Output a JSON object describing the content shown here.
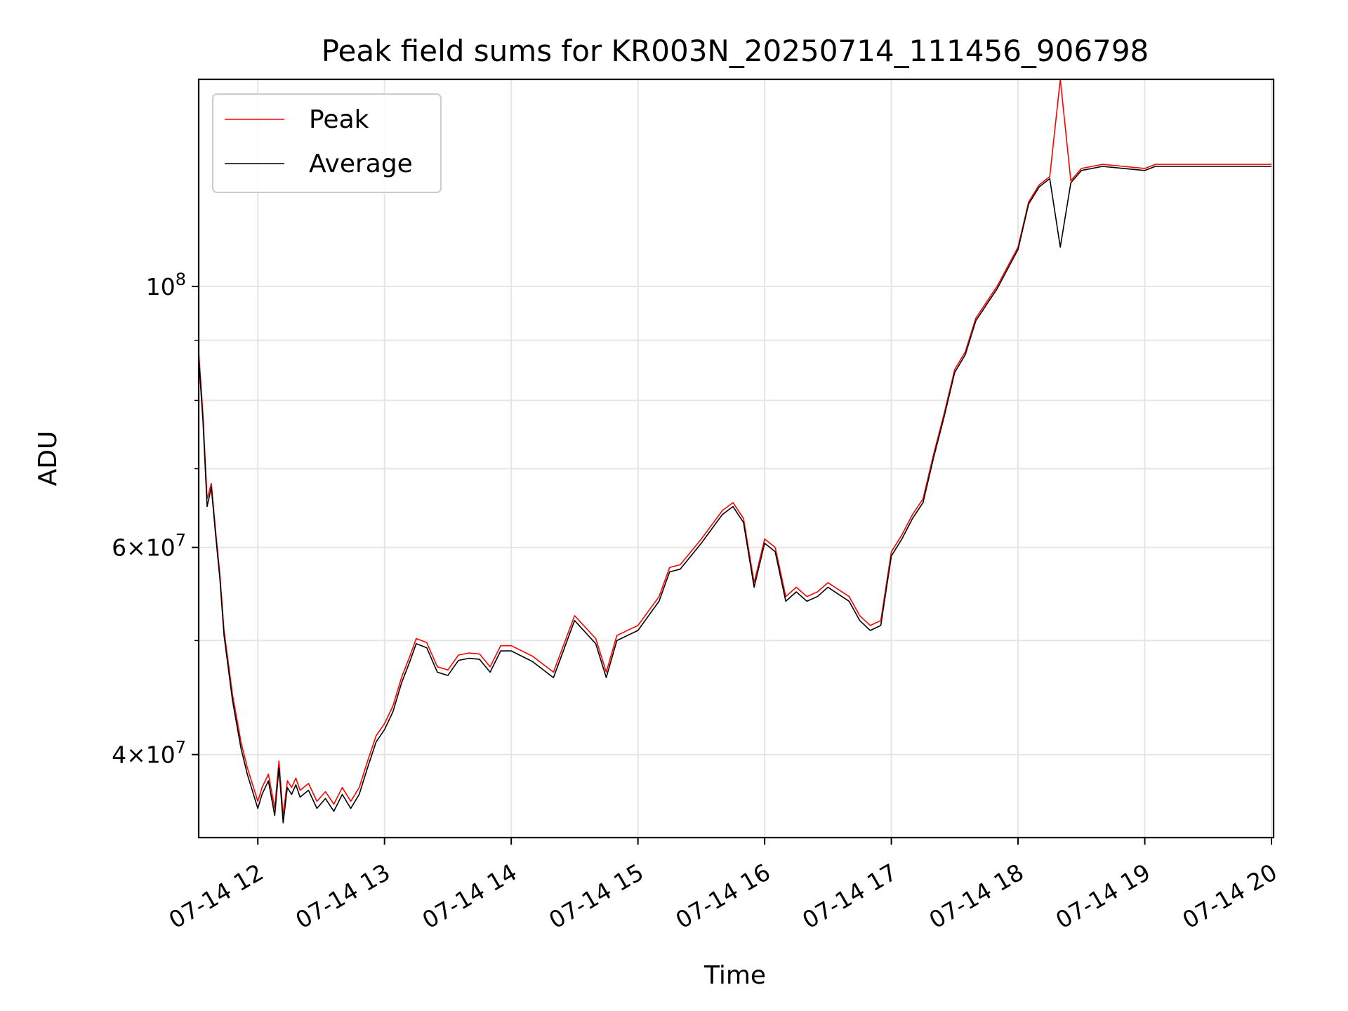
{
  "chart_data": {
    "type": "line",
    "title": "Peak field sums for KR003N_20250714_111456_906798",
    "xlabel": "Time",
    "ylabel": "ADU",
    "yscale": "log",
    "grid": true,
    "legend_position": "top-left",
    "xlim": [
      "2025-07-14 11:32",
      "2025-07-14 20:01"
    ],
    "ylim": [
      34000000,
      150000000
    ],
    "x_ticks": [
      "07-14 12",
      "07-14 13",
      "07-14 14",
      "07-14 15",
      "07-14 16",
      "07-14 17",
      "07-14 18",
      "07-14 19",
      "07-14 20"
    ],
    "y_major_ticks": [
      {
        "value": 100000000,
        "base": "10",
        "exp": "8",
        "mant": ""
      },
      {
        "value": 60000000,
        "base": "10",
        "exp": "7",
        "mant": "6"
      },
      {
        "value": 40000000,
        "base": "10",
        "exp": "7",
        "mant": "4"
      }
    ],
    "y_minor_ticks": [
      50000000,
      70000000,
      80000000,
      90000000
    ],
    "colors": {
      "peak": "#ff0000",
      "average": "#000000"
    },
    "x": [
      "11:32",
      "11:34",
      "11:36",
      "11:38",
      "11:40",
      "11:42",
      "11:44",
      "11:48",
      "11:52",
      "11:55",
      "12:00",
      "12:02",
      "12:05",
      "12:08",
      "12:10",
      "12:12",
      "12:14",
      "12:16",
      "12:18",
      "12:20",
      "12:24",
      "12:28",
      "12:32",
      "12:36",
      "12:40",
      "12:44",
      "12:48",
      "12:52",
      "12:56",
      "13:00",
      "13:04",
      "13:08",
      "13:12",
      "13:15",
      "13:20",
      "13:25",
      "13:30",
      "13:35",
      "13:40",
      "13:45",
      "13:50",
      "13:55",
      "14:00",
      "14:10",
      "14:20",
      "14:30",
      "14:40",
      "14:45",
      "14:50",
      "15:00",
      "15:10",
      "15:15",
      "15:20",
      "15:30",
      "15:40",
      "15:45",
      "15:50",
      "15:55",
      "16:00",
      "16:05",
      "16:10",
      "16:15",
      "16:20",
      "16:25",
      "16:30",
      "16:40",
      "16:45",
      "16:50",
      "16:55",
      "17:00",
      "17:05",
      "17:10",
      "17:15",
      "17:20",
      "17:25",
      "17:30",
      "17:35",
      "17:40",
      "17:50",
      "18:00",
      "18:05",
      "18:10",
      "18:15",
      "18:20",
      "18:25",
      "18:30",
      "18:40",
      "18:50",
      "19:00",
      "19:05",
      "19:10",
      "19:15",
      "19:20",
      "19:25",
      "19:30",
      "19:35",
      "19:40",
      "19:45",
      "19:46",
      "19:47",
      "19:50",
      "19:55",
      "20:00"
    ],
    "series": [
      {
        "name": "Peak",
        "values": [
          88000000,
          78000000,
          66000000,
          68000000,
          62000000,
          57000000,
          51000000,
          45000000,
          41000000,
          39000000,
          36500000,
          37500000,
          38500000,
          36000000,
          39500000,
          35500000,
          38000000,
          37500000,
          38200000,
          37300000,
          37800000,
          36500000,
          37200000,
          36300000,
          37500000,
          36500000,
          37500000,
          39500000,
          41500000,
          42500000,
          44000000,
          46500000,
          48500000,
          50200000,
          49800000,
          47500000,
          47200000,
          48600000,
          48800000,
          48700000,
          47500000,
          49500000,
          49500000,
          48500000,
          47000000,
          52500000,
          50200000,
          47000000,
          50500000,
          51500000,
          54500000,
          57700000,
          58000000,
          61000000,
          64500000,
          65500000,
          63500000,
          56000000,
          61000000,
          60000000,
          54500000,
          55500000,
          54500000,
          55000000,
          56000000,
          54500000,
          52500000,
          51500000,
          52000000,
          59500000,
          61500000,
          64000000,
          66000000,
          72000000,
          78000000,
          85000000,
          88000000,
          94000000,
          100000000,
          108000000,
          118000000,
          122000000,
          124000000,
          150000000,
          123000000,
          126000000,
          127000000,
          126500000,
          126000000,
          127000000,
          127000000,
          127000000,
          127000000,
          127000000,
          127000000,
          127000000,
          127000000,
          127000000,
          127000000,
          127000000,
          127000000,
          127000000,
          127000000
        ]
      },
      {
        "name": "Average",
        "values": [
          87000000,
          77000000,
          65000000,
          67500000,
          61500000,
          56500000,
          50500000,
          44500000,
          40500000,
          38500000,
          36000000,
          37000000,
          38000000,
          35500000,
          39000000,
          35000000,
          37500000,
          37000000,
          37700000,
          36800000,
          37300000,
          36000000,
          36700000,
          35800000,
          37000000,
          36000000,
          37000000,
          39000000,
          41000000,
          42000000,
          43500000,
          46000000,
          48000000,
          49700000,
          49300000,
          47000000,
          46700000,
          48100000,
          48300000,
          48200000,
          47000000,
          49000000,
          49000000,
          48000000,
          46500000,
          52000000,
          49700000,
          46500000,
          50000000,
          51000000,
          54000000,
          57200000,
          57500000,
          60500000,
          64000000,
          65000000,
          63000000,
          55500000,
          60500000,
          59500000,
          54000000,
          55000000,
          54000000,
          54500000,
          55500000,
          54000000,
          52000000,
          51000000,
          51500000,
          59000000,
          61000000,
          63500000,
          65500000,
          71500000,
          77500000,
          84500000,
          87500000,
          93500000,
          99500000,
          107500000,
          117500000,
          121500000,
          123500000,
          108000000,
          122500000,
          125500000,
          126500000,
          126000000,
          125500000,
          126500000,
          126500000,
          126500000,
          126500000,
          126500000,
          126500000,
          126500000,
          126500000,
          126500000,
          126500000,
          126500000,
          126500000,
          126500000,
          126500000
        ]
      }
    ]
  }
}
